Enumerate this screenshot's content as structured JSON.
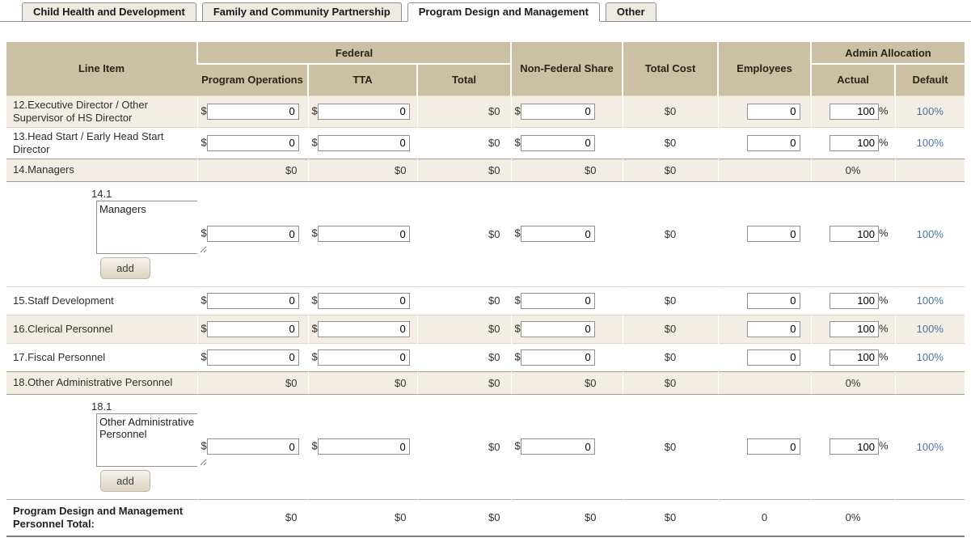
{
  "tabs": [
    {
      "label": "Child Health and Development",
      "active": false
    },
    {
      "label": "Family and Community Partnership",
      "active": false
    },
    {
      "label": "Program Design and Management",
      "active": true
    },
    {
      "label": "Other",
      "active": false
    }
  ],
  "table": {
    "currency_symbol": "$",
    "percent_symbol": "%",
    "header": {
      "line_item": "Line Item",
      "federal": "Federal",
      "program_operations": "Program Operations",
      "tta": "TTA",
      "total": "Total",
      "non_federal_share": "Non-Federal Share",
      "total_cost": "Total Cost",
      "employees": "Employees",
      "admin_allocation": "Admin Allocation",
      "actual": "Actual",
      "default": "Default"
    },
    "rows": [
      {
        "type": "input",
        "shade": "beige",
        "label": "12.Executive Director / Other Supervisor of HS Director",
        "program_operations": "0",
        "tta": "0",
        "federal_total": "$0",
        "non_federal_share": "0",
        "total_cost": "$0",
        "employees": "0",
        "actual": "100",
        "default_link": "100%"
      },
      {
        "type": "input",
        "shade": "white",
        "label": "13.Head Start / Early Head Start Director",
        "program_operations": "0",
        "tta": "0",
        "federal_total": "$0",
        "non_federal_share": "0",
        "total_cost": "$0",
        "employees": "0",
        "actual": "100",
        "default_link": "100%"
      },
      {
        "type": "subtotal",
        "shade": "beige",
        "label": "14.Managers",
        "program_operations": "$0",
        "tta": "$0",
        "federal_total": "$0",
        "non_federal_share": "$0",
        "total_cost": "$0",
        "actual": "0%"
      },
      {
        "type": "subitem",
        "shade": "white",
        "number": "14.1",
        "description": "Managers",
        "add_label": "add",
        "program_operations": "0",
        "tta": "0",
        "federal_total": "$0",
        "non_federal_share": "0",
        "total_cost": "$0",
        "employees": "0",
        "actual": "100",
        "default_link": "100%"
      },
      {
        "type": "input",
        "shade": "white",
        "label": "15.Staff Development",
        "program_operations": "0",
        "tta": "0",
        "federal_total": "$0",
        "non_federal_share": "0",
        "total_cost": "$0",
        "employees": "0",
        "actual": "100",
        "default_link": "100%"
      },
      {
        "type": "input",
        "shade": "beige",
        "label": "16.Clerical Personnel",
        "program_operations": "0",
        "tta": "0",
        "federal_total": "$0",
        "non_federal_share": "0",
        "total_cost": "$0",
        "employees": "0",
        "actual": "100",
        "default_link": "100%"
      },
      {
        "type": "input",
        "shade": "white",
        "label": "17.Fiscal Personnel",
        "program_operations": "0",
        "tta": "0",
        "federal_total": "$0",
        "non_federal_share": "0",
        "total_cost": "$0",
        "employees": "0",
        "actual": "100",
        "default_link": "100%"
      },
      {
        "type": "subtotal",
        "shade": "beige",
        "label": "18.Other Administrative Personnel",
        "program_operations": "$0",
        "tta": "$0",
        "federal_total": "$0",
        "non_federal_share": "$0",
        "total_cost": "$0",
        "actual": "0%"
      },
      {
        "type": "subitem",
        "shade": "white",
        "number": "18.1",
        "description": "Other Administrative Personnel",
        "add_label": "add",
        "program_operations": "0",
        "tta": "0",
        "federal_total": "$0",
        "non_federal_share": "0",
        "total_cost": "$0",
        "employees": "0",
        "actual": "100",
        "default_link": "100%"
      }
    ],
    "total_row": {
      "label": "Program Design and Management Personnel Total:",
      "program_operations": "$0",
      "tta": "$0",
      "federal_total": "$0",
      "non_federal_share": "$0",
      "total_cost": "$0",
      "employees": "0",
      "actual": "0%",
      "default": ""
    }
  }
}
